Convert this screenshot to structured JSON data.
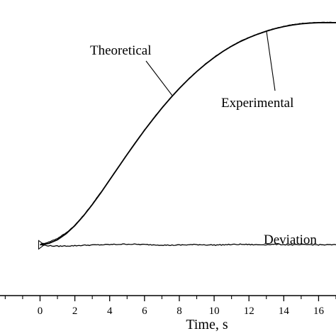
{
  "chart_data": {
    "type": "line",
    "title": "",
    "xlabel": "Time, s",
    "ylabel": "",
    "xlim": [
      -2.3,
      17.0
    ],
    "ylim": [
      -0.22,
      1.06
    ],
    "x_ticks": [
      0,
      2,
      4,
      6,
      8,
      10,
      12,
      14,
      16
    ],
    "grid": false,
    "legend": "none",
    "colors": {
      "line": "#000000",
      "background": "#ffffff"
    },
    "series": [
      {
        "name": "Theoretical",
        "x": [
          0,
          0.5,
          1,
          1.5,
          2,
          2.5,
          3,
          3.5,
          4,
          4.5,
          5,
          5.5,
          6,
          6.5,
          7,
          7.5,
          8,
          8.5,
          9,
          9.5,
          10,
          10.5,
          11,
          11.5,
          12,
          12.5,
          13,
          13.5,
          14,
          14.5,
          15,
          15.5,
          16,
          16.5,
          17
        ],
        "y": [
          0.0,
          0.006,
          0.022,
          0.048,
          0.083,
          0.126,
          0.174,
          0.226,
          0.281,
          0.336,
          0.391,
          0.444,
          0.496,
          0.545,
          0.592,
          0.636,
          0.677,
          0.715,
          0.75,
          0.782,
          0.811,
          0.837,
          0.86,
          0.88,
          0.897,
          0.912,
          0.925,
          0.936,
          0.945,
          0.952,
          0.957,
          0.96,
          0.962,
          0.962,
          0.962
        ]
      },
      {
        "name": "Experimental",
        "x": [
          0,
          0.5,
          1,
          1.5,
          2,
          2.5,
          3,
          3.5,
          4,
          4.5,
          5,
          5.5,
          6,
          6.5,
          7,
          7.5,
          8,
          8.5,
          9,
          9.5,
          10,
          10.5,
          11,
          11.5,
          12,
          12.5,
          13,
          13.5,
          14,
          14.5,
          15,
          15.5,
          16,
          16.5,
          17
        ],
        "y": [
          0.002,
          0.012,
          0.028,
          0.052,
          0.085,
          0.127,
          0.176,
          0.228,
          0.282,
          0.337,
          0.392,
          0.445,
          0.497,
          0.546,
          0.593,
          0.637,
          0.678,
          0.716,
          0.751,
          0.783,
          0.812,
          0.838,
          0.861,
          0.881,
          0.898,
          0.913,
          0.926,
          0.937,
          0.946,
          0.953,
          0.958,
          0.961,
          0.963,
          0.963,
          0.963
        ]
      },
      {
        "name": "Deviation",
        "x": [
          0,
          0.5,
          1,
          1.5,
          2,
          2.5,
          3,
          3.5,
          4,
          4.5,
          5,
          5.5,
          6,
          6.5,
          7,
          7.5,
          8,
          8.5,
          9,
          9.5,
          10,
          10.5,
          11,
          11.5,
          12,
          12.5,
          13,
          13.5,
          14,
          14.5,
          15,
          15.5,
          16,
          16.5,
          17
        ],
        "y": [
          0.0,
          -0.004,
          -0.006,
          -0.005,
          -0.004,
          -0.002,
          -0.001,
          0.0,
          0.001,
          0.002,
          0.003,
          0.002,
          0.001,
          0.0,
          -0.001,
          -0.002,
          -0.001,
          0.0,
          0.001,
          0.0,
          -0.001,
          0.0,
          0.001,
          0.002,
          0.001,
          0.0,
          0.001,
          0.002,
          0.001,
          0.0,
          0.0,
          0.001,
          0.0,
          0.0,
          0.0
        ]
      }
    ],
    "annotations": [
      {
        "text": "Theoretical",
        "series": "Theoretical",
        "target": [
          7.6,
          0.646
        ]
      },
      {
        "text": "Experimental",
        "series": "Experimental",
        "target": [
          13.0,
          0.928
        ]
      },
      {
        "text": "Deviation",
        "series": "Deviation"
      }
    ]
  }
}
